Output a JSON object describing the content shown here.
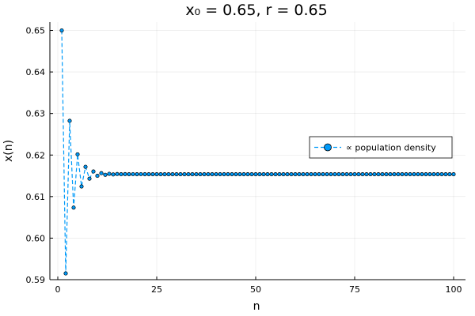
{
  "chart_data": {
    "type": "line",
    "title": "x₀ = 0.65, r = 0.65",
    "xlabel": "n",
    "ylabel": "x(n)",
    "xlim": [
      -2,
      103
    ],
    "ylim": [
      0.59,
      0.652
    ],
    "xticks": [
      0,
      25,
      50,
      75,
      100
    ],
    "xtick_labels": [
      "0",
      "25",
      "50",
      "75",
      "100"
    ],
    "yticks": [
      0.59,
      0.6,
      0.61,
      0.62,
      0.63,
      0.64,
      0.65
    ],
    "ytick_labels": [
      "0.59",
      "0.60",
      "0.61",
      "0.62",
      "0.63",
      "0.64",
      "0.65"
    ],
    "grid": true,
    "legend_position": "right",
    "line_style": "dashed",
    "marker": "circle",
    "series_color": "#009af9",
    "series": [
      {
        "name": "∝ population density",
        "x": [
          1,
          2,
          3,
          4,
          5,
          6,
          7,
          8,
          9,
          10,
          11,
          12,
          13,
          14,
          15,
          16,
          17,
          18,
          19,
          20,
          21,
          22,
          23,
          24,
          25,
          26,
          27,
          28,
          29,
          30,
          31,
          32,
          33,
          34,
          35,
          36,
          37,
          38,
          39,
          40,
          41,
          42,
          43,
          44,
          45,
          46,
          47,
          48,
          49,
          50,
          51,
          52,
          53,
          54,
          55,
          56,
          57,
          58,
          59,
          60,
          61,
          62,
          63,
          64,
          65,
          66,
          67,
          68,
          69,
          70,
          71,
          72,
          73,
          74,
          75,
          76,
          77,
          78,
          79,
          80,
          81,
          82,
          83,
          84,
          85,
          86,
          87,
          88,
          89,
          90,
          91,
          92,
          93,
          94,
          95,
          96,
          97,
          98,
          99,
          100
        ],
        "values": [
          0.65,
          0.5915,
          0.62823,
          0.60735,
          0.62017,
          0.61243,
          0.61717,
          0.61431,
          0.61604,
          0.61499,
          0.61563,
          0.61524,
          0.61548,
          0.61533,
          0.61542,
          0.61537,
          0.6154,
          0.61538,
          0.61539,
          0.61538,
          0.61539,
          0.61538,
          0.61538,
          0.61538,
          0.61538,
          0.61538,
          0.61538,
          0.61538,
          0.61538,
          0.61538,
          0.61538,
          0.61538,
          0.61538,
          0.61538,
          0.61538,
          0.61538,
          0.61538,
          0.61538,
          0.61538,
          0.61538,
          0.61538,
          0.61538,
          0.61538,
          0.61538,
          0.61538,
          0.61538,
          0.61538,
          0.61538,
          0.61538,
          0.61538,
          0.61538,
          0.61538,
          0.61538,
          0.61538,
          0.61538,
          0.61538,
          0.61538,
          0.61538,
          0.61538,
          0.61538,
          0.61538,
          0.61538,
          0.61538,
          0.61538,
          0.61538,
          0.61538,
          0.61538,
          0.61538,
          0.61538,
          0.61538,
          0.61538,
          0.61538,
          0.61538,
          0.61538,
          0.61538,
          0.61538,
          0.61538,
          0.61538,
          0.61538,
          0.61538,
          0.61538,
          0.61538,
          0.61538,
          0.61538,
          0.61538,
          0.61538,
          0.61538,
          0.61538,
          0.61538,
          0.61538,
          0.61538,
          0.61538,
          0.61538,
          0.61538,
          0.61538,
          0.61538,
          0.61538,
          0.61538,
          0.61538,
          0.61538
        ]
      }
    ]
  }
}
